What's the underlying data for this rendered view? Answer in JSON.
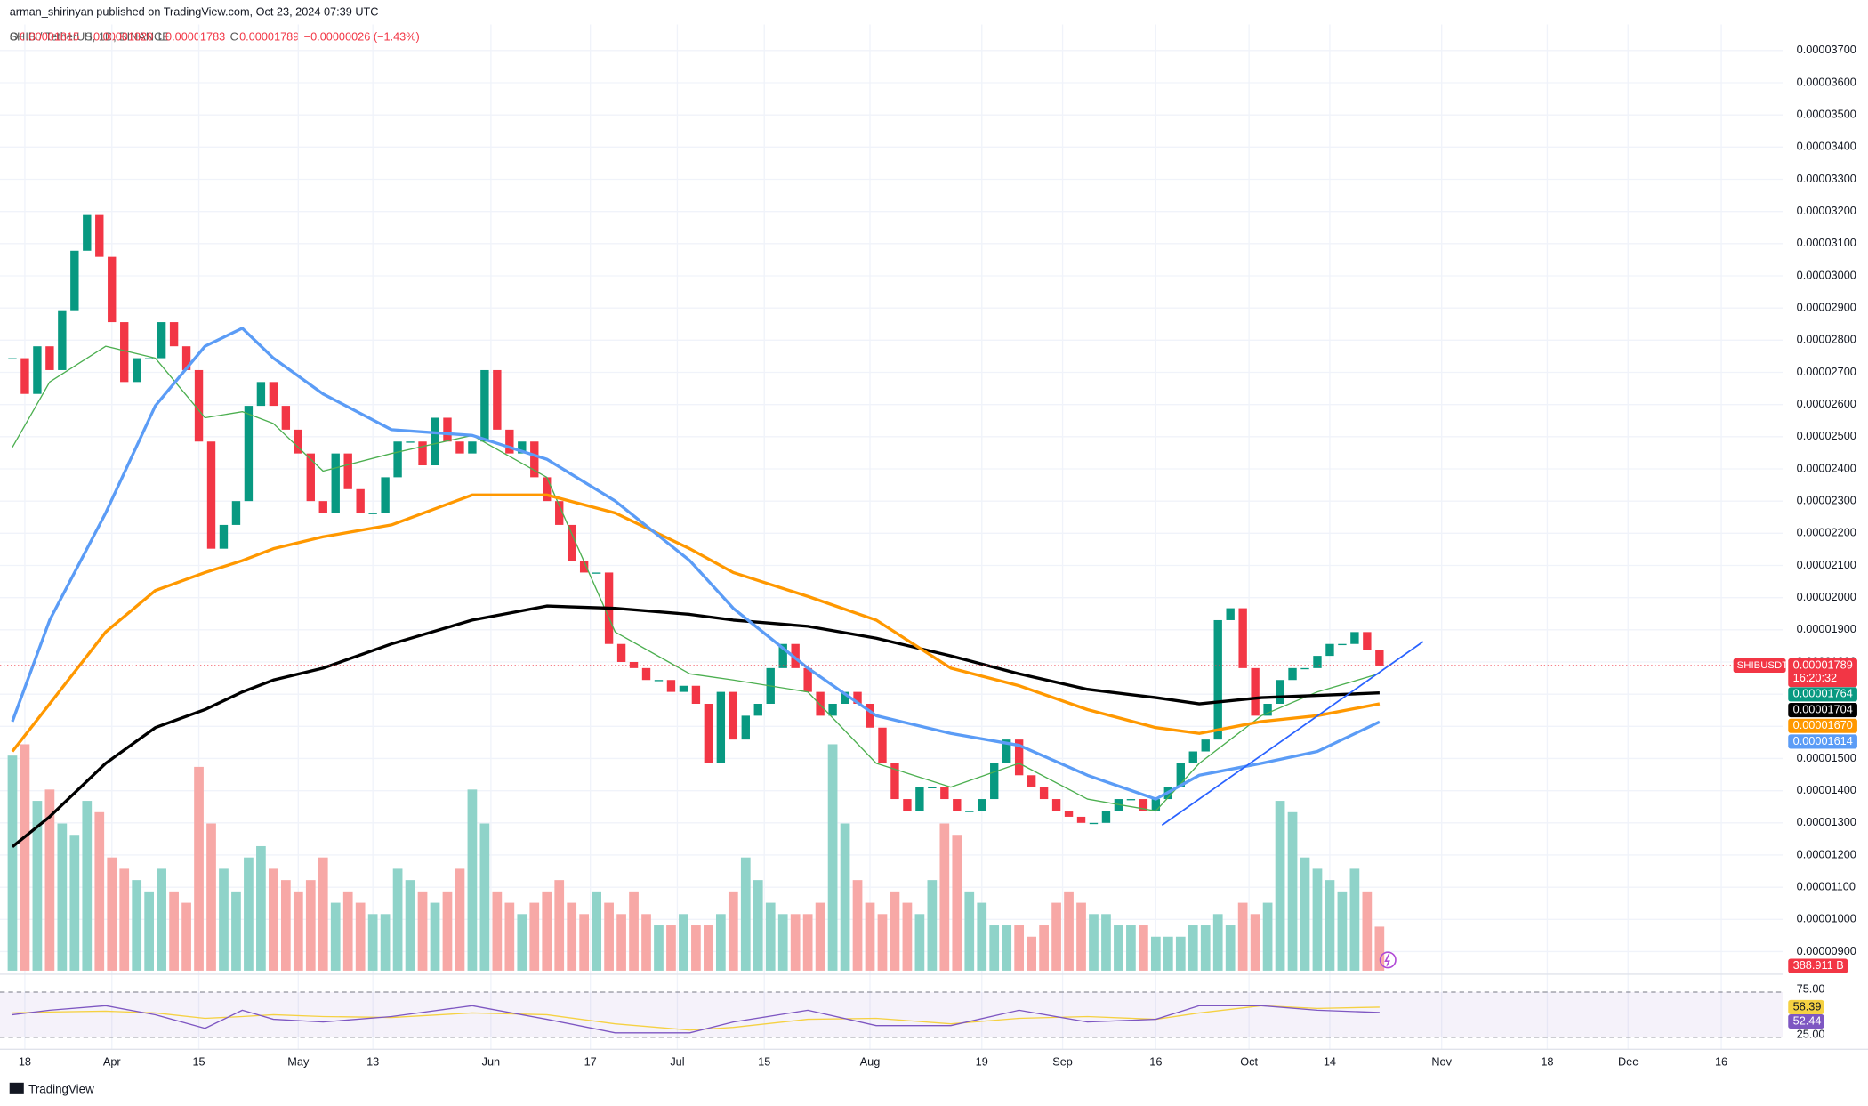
{
  "header": {
    "publisher": "arman_shirinyan published on TradingView.com, Oct 23, 2024 07:39 UTC",
    "symbol": "SHIB / TetherUS, 1D, BINANCE",
    "ohlc": [
      {
        "key": "O",
        "value": "0.00001815"
      },
      {
        "key": "H",
        "value": "0.00001820"
      },
      {
        "key": "L",
        "value": "0.00001783"
      },
      {
        "key": "C",
        "value": "0.00001789"
      }
    ],
    "change": "−0.00000026 (−1.43%)"
  },
  "chart_data": {
    "type": "candlestick",
    "up_color": "#089981",
    "down_color": "#f23645",
    "grid": true,
    "x": [
      "2024-03-16",
      "2024-03-18",
      "2024-03-20",
      "2024-03-22",
      "2024-03-24",
      "2024-03-26",
      "2024-03-28",
      "2024-03-30",
      "2024-04-01",
      "2024-04-03",
      "2024-04-05",
      "2024-04-07",
      "2024-04-09",
      "2024-04-11",
      "2024-04-13",
      "2024-04-15",
      "2024-04-17",
      "2024-04-19",
      "2024-04-21",
      "2024-04-23",
      "2024-04-25",
      "2024-04-27",
      "2024-04-29",
      "2024-05-01",
      "2024-05-03",
      "2024-05-05",
      "2024-05-07",
      "2024-05-09",
      "2024-05-11",
      "2024-05-13",
      "2024-05-15",
      "2024-05-17",
      "2024-05-19",
      "2024-05-21",
      "2024-05-23",
      "2024-05-25",
      "2024-05-27",
      "2024-05-29",
      "2024-05-31",
      "2024-06-02",
      "2024-06-04",
      "2024-06-06",
      "2024-06-08",
      "2024-06-10",
      "2024-06-12",
      "2024-06-14",
      "2024-06-16",
      "2024-06-18",
      "2024-06-20",
      "2024-06-22",
      "2024-06-24",
      "2024-06-26",
      "2024-06-28",
      "2024-06-30",
      "2024-07-02",
      "2024-07-04",
      "2024-07-06",
      "2024-07-08",
      "2024-07-10",
      "2024-07-12",
      "2024-07-14",
      "2024-07-16",
      "2024-07-18",
      "2024-07-20",
      "2024-07-22",
      "2024-07-24",
      "2024-07-26",
      "2024-07-28",
      "2024-07-30",
      "2024-08-01",
      "2024-08-03",
      "2024-08-05",
      "2024-08-07",
      "2024-08-09",
      "2024-08-11",
      "2024-08-13",
      "2024-08-15",
      "2024-08-17",
      "2024-08-19",
      "2024-08-21",
      "2024-08-23",
      "2024-08-25",
      "2024-08-27",
      "2024-08-29",
      "2024-08-31",
      "2024-09-02",
      "2024-09-04",
      "2024-09-06",
      "2024-09-08",
      "2024-09-10",
      "2024-09-12",
      "2024-09-14",
      "2024-09-16",
      "2024-09-18",
      "2024-09-20",
      "2024-09-22",
      "2024-09-24",
      "2024-09-26",
      "2024-09-28",
      "2024-09-30",
      "2024-10-02",
      "2024-10-04",
      "2024-10-06",
      "2024-10-08",
      "2024-10-10",
      "2024-10-12",
      "2024-10-14",
      "2024-10-16",
      "2024-10-18",
      "2024-10-20",
      "2024-10-22"
    ],
    "close": [
      2.744e-05,
      2.633e-05,
      2.781e-05,
      2.707e-05,
      2.893e-05,
      3.078e-05,
      3.189e-05,
      3.059e-05,
      2.856e-05,
      2.67e-05,
      2.744e-05,
      2.744e-05,
      2.856e-05,
      2.781e-05,
      2.707e-05,
      2.485e-05,
      2.152e-05,
      2.226e-05,
      2.3e-05,
      2.596e-05,
      2.67e-05,
      2.596e-05,
      2.522e-05,
      2.448e-05,
      2.3e-05,
      2.263e-05,
      2.448e-05,
      2.337e-05,
      2.263e-05,
      2.263e-05,
      2.374e-05,
      2.485e-05,
      2.485e-05,
      2.411e-05,
      2.559e-05,
      2.485e-05,
      2.448e-05,
      2.485e-05,
      2.707e-05,
      2.522e-05,
      2.448e-05,
      2.485e-05,
      2.374e-05,
      2.3e-05,
      2.226e-05,
      2.115e-05,
      2.078e-05,
      2.078e-05,
      1.856e-05,
      1.8e-05,
      1.781e-05,
      1.744e-05,
      1.744e-05,
      1.707e-05,
      1.726e-05,
      1.67e-05,
      1.485e-05,
      1.707e-05,
      1.559e-05,
      1.633e-05,
      1.67e-05,
      1.781e-05,
      1.856e-05,
      1.781e-05,
      1.707e-05,
      1.633e-05,
      1.67e-05,
      1.707e-05,
      1.67e-05,
      1.596e-05,
      1.485e-05,
      1.374e-05,
      1.337e-05,
      1.411e-05,
      1.411e-05,
      1.374e-05,
      1.337e-05,
      1.337e-05,
      1.374e-05,
      1.485e-05,
      1.559e-05,
      1.448e-05,
      1.411e-05,
      1.374e-05,
      1.337e-05,
      1.319e-05,
      1.3e-05,
      1.3e-05,
      1.337e-05,
      1.374e-05,
      1.374e-05,
      1.337e-05,
      1.374e-05,
      1.411e-05,
      1.485e-05,
      1.522e-05,
      1.559e-05,
      1.93e-05,
      1.967e-05,
      1.781e-05,
      1.633e-05,
      1.67e-05,
      1.744e-05,
      1.781e-05,
      1.781e-05,
      1.819e-05,
      1.856e-05,
      1.856e-05,
      1.893e-05,
      1.837e-05,
      1.789e-05
    ],
    "xlim": [
      "2024-03-14",
      "2024-12-26"
    ],
    "xticks": [
      {
        "value": "2024-03-18",
        "label": "18"
      },
      {
        "value": "2024-04-01",
        "label": "Apr"
      },
      {
        "value": "2024-04-15",
        "label": "15"
      },
      {
        "value": "2024-05-01",
        "label": "May"
      },
      {
        "value": "2024-05-13",
        "label": "13"
      },
      {
        "value": "2024-06-01",
        "label": "Jun"
      },
      {
        "value": "2024-06-17",
        "label": "17"
      },
      {
        "value": "2024-07-01",
        "label": "Jul"
      },
      {
        "value": "2024-07-15",
        "label": "15"
      },
      {
        "value": "2024-08-01",
        "label": "Aug"
      },
      {
        "value": "2024-08-19",
        "label": "19"
      },
      {
        "value": "2024-09-01",
        "label": "Sep"
      },
      {
        "value": "2024-09-16",
        "label": "16"
      },
      {
        "value": "2024-10-01",
        "label": "Oct"
      },
      {
        "value": "2024-10-14",
        "label": "14"
      },
      {
        "value": "2024-11-01",
        "label": "Nov"
      },
      {
        "value": "2024-11-18",
        "label": "18"
      },
      {
        "value": "2024-12-01",
        "label": "Dec"
      },
      {
        "value": "2024-12-16",
        "label": "16"
      }
    ],
    "ylim": [
      8.37e-06,
      3.744e-05
    ],
    "yticks": [
      {
        "value": 9e-06,
        "label": "0.00000900"
      },
      {
        "value": 1e-05,
        "label": "0.00001000"
      },
      {
        "value": 1.1e-05,
        "label": "0.00001100"
      },
      {
        "value": 1.2e-05,
        "label": "0.00001200"
      },
      {
        "value": 1.3e-05,
        "label": "0.00001300"
      },
      {
        "value": 1.4e-05,
        "label": "0.00001400"
      },
      {
        "value": 1.5e-05,
        "label": "0.00001500"
      },
      {
        "value": 1.6e-05,
        "label": "0.00001600"
      },
      {
        "value": 1.7e-05,
        "label": "0.00001700"
      },
      {
        "value": 1.8e-05,
        "label": "0.00001800"
      },
      {
        "value": 1.9e-05,
        "label": "0.00001900"
      },
      {
        "value": 2e-05,
        "label": "0.00002000"
      },
      {
        "value": 2.1e-05,
        "label": "0.00002100"
      },
      {
        "value": 2.2e-05,
        "label": "0.00002200"
      },
      {
        "value": 2.3e-05,
        "label": "0.00002300"
      },
      {
        "value": 2.4e-05,
        "label": "0.00002400"
      },
      {
        "value": 2.5e-05,
        "label": "0.00002500"
      },
      {
        "value": 2.6e-05,
        "label": "0.00002600"
      },
      {
        "value": 2.7e-05,
        "label": "0.00002700"
      },
      {
        "value": 2.8e-05,
        "label": "0.00002800"
      },
      {
        "value": 2.9e-05,
        "label": "0.00002900"
      },
      {
        "value": 3e-05,
        "label": "0.00003000"
      },
      {
        "value": 3.1e-05,
        "label": "0.00003100"
      },
      {
        "value": 3.2e-05,
        "label": "0.00003200"
      },
      {
        "value": 3.3e-05,
        "label": "0.00003300"
      },
      {
        "value": 3.4e-05,
        "label": "0.00003400"
      },
      {
        "value": 3.5e-05,
        "label": "0.00003500"
      },
      {
        "value": 3.6e-05,
        "label": "0.00003600"
      },
      {
        "value": 3.7e-05,
        "label": "0.00003700"
      }
    ],
    "last_price": {
      "value": 1.789e-05,
      "label": "0.00001789",
      "symbol": "SHIBUSDT",
      "countdown": "16:20:32",
      "color": "#f23645"
    },
    "overlay_x": [
      "2024-03-16",
      "2024-03-22",
      "2024-03-31",
      "2024-04-08",
      "2024-04-16",
      "2024-04-22",
      "2024-04-27",
      "2024-05-05",
      "2024-05-16",
      "2024-05-29",
      "2024-06-10",
      "2024-06-21",
      "2024-07-03",
      "2024-07-10",
      "2024-07-22",
      "2024-08-02",
      "2024-08-14",
      "2024-08-25",
      "2024-09-05",
      "2024-09-16",
      "2024-09-23",
      "2024-10-03",
      "2024-10-12",
      "2024-10-22"
    ],
    "overlays": [
      {
        "color": "#4caf50",
        "width": 1,
        "values": [
          2.467e-05,
          2.67e-05,
          2.781e-05,
          2.744e-05,
          2.559e-05,
          2.578e-05,
          2.541e-05,
          2.393e-05,
          2.448e-05,
          2.504e-05,
          2.374e-05,
          1.893e-05,
          1.763e-05,
          1.744e-05,
          1.707e-05,
          1.485e-05,
          1.411e-05,
          1.485e-05,
          1.374e-05,
          1.337e-05,
          1.485e-05,
          1.633e-05,
          1.707e-05,
          1.764e-05
        ],
        "last_label": "0.00001764",
        "tag_color": "#089981"
      },
      {
        "color": "#000000",
        "width": 2.5,
        "values": [
          1.226e-05,
          1.319e-05,
          1.485e-05,
          1.596e-05,
          1.652e-05,
          1.707e-05,
          1.744e-05,
          1.781e-05,
          1.856e-05,
          1.93e-05,
          1.974e-05,
          1.967e-05,
          1.948e-05,
          1.93e-05,
          1.911e-05,
          1.874e-05,
          1.819e-05,
          1.763e-05,
          1.715e-05,
          1.689e-05,
          1.67e-05,
          1.689e-05,
          1.696e-05,
          1.704e-05
        ],
        "last_label": "0.00001704",
        "tag_color": "#000000"
      },
      {
        "color": "#ff9800",
        "width": 2.5,
        "values": [
          1.522e-05,
          1.67e-05,
          1.893e-05,
          2.022e-05,
          2.078e-05,
          2.115e-05,
          2.152e-05,
          2.189e-05,
          2.226e-05,
          2.319e-05,
          2.319e-05,
          2.263e-05,
          2.152e-05,
          2.078e-05,
          2.004e-05,
          1.93e-05,
          1.781e-05,
          1.726e-05,
          1.652e-05,
          1.596e-05,
          1.578e-05,
          1.615e-05,
          1.633e-05,
          1.67e-05
        ],
        "last_label": "0.00001670",
        "tag_color": "#ff9800"
      },
      {
        "color": "#5b9cf6",
        "width": 2.5,
        "values": [
          1.615e-05,
          1.93e-05,
          2.263e-05,
          2.596e-05,
          2.781e-05,
          2.837e-05,
          2.744e-05,
          2.633e-05,
          2.522e-05,
          2.504e-05,
          2.43e-05,
          2.3e-05,
          2.115e-05,
          1.967e-05,
          1.781e-05,
          1.633e-05,
          1.578e-05,
          1.541e-05,
          1.448e-05,
          1.374e-05,
          1.448e-05,
          1.485e-05,
          1.522e-05,
          1.614e-05
        ],
        "last_label": "0.00001614",
        "tag_color": "#5b9cf6"
      }
    ],
    "trendline": {
      "color": "#2962ff",
      "x": [
        "2024-09-17",
        "2024-10-29"
      ],
      "values": [
        1.293e-05,
        1.863e-05
      ]
    },
    "volume": {
      "values": [
        1900,
        2000,
        1500,
        1600,
        1300,
        1200,
        1500,
        1400,
        1000,
        900,
        800,
        700,
        900,
        700,
        600,
        1800,
        1300,
        900,
        700,
        1000,
        1100,
        900,
        800,
        700,
        800,
        1000,
        600,
        700,
        600,
        500,
        500,
        900,
        800,
        700,
        600,
        700,
        900,
        1600,
        1300,
        700,
        600,
        500,
        600,
        700,
        800,
        600,
        500,
        700,
        600,
        500,
        700,
        500,
        400,
        400,
        500,
        400,
        400,
        500,
        700,
        1000,
        800,
        600,
        500,
        500,
        500,
        600,
        2000,
        1300,
        800,
        600,
        500,
        700,
        600,
        500,
        800,
        1300,
        1200,
        700,
        600,
        400,
        400,
        400,
        300,
        400,
        600,
        700,
        600,
        500,
        500,
        400,
        400,
        400,
        300,
        300,
        300,
        400,
        400,
        500,
        400,
        600,
        500,
        600,
        1500,
        1400,
        1000,
        900,
        800,
        700,
        900,
        700,
        388.911
      ],
      "last_label": "388.911 B",
      "up_color": "#8fd3c9",
      "down_color": "#f7a8a6"
    },
    "rsi": {
      "color": "#7e57c2",
      "signal_color": "#f5d142",
      "ylim": [
        15,
        85
      ],
      "yticks": [
        {
          "value": 25,
          "label": "25.00"
        },
        {
          "value": 75,
          "label": "75.00"
        }
      ],
      "values": [
        50,
        55,
        60,
        50,
        35,
        55,
        45,
        42,
        48,
        60,
        45,
        30,
        30,
        42,
        55,
        38,
        38,
        55,
        42,
        45,
        60,
        60,
        55,
        52.44
      ],
      "signal": [
        52,
        53,
        54,
        52,
        46,
        48,
        50,
        48,
        47,
        52,
        50,
        40,
        33,
        36,
        45,
        46,
        40,
        46,
        48,
        45,
        52,
        60,
        57,
        58.39
      ],
      "last_label": "52.44",
      "signal_last_label": "58.39"
    }
  },
  "footer": {
    "brand": "TradingView"
  }
}
